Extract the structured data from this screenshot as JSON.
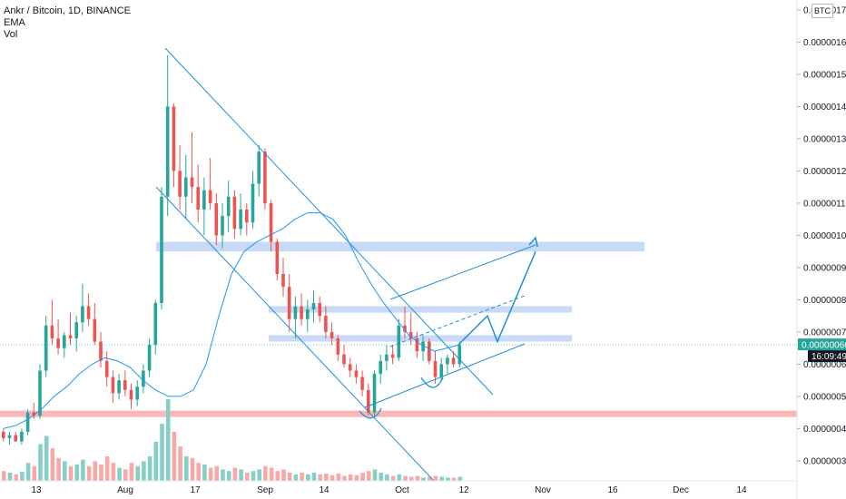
{
  "header": {
    "symbol_line": "Ankr / Bitcoin, 1D, BINANCE",
    "indicator_ema": "EMA",
    "indicator_vol": "Vol"
  },
  "price_scale": {
    "unit": "BTC",
    "labels": [
      "0.00000170",
      "0.00000160",
      "0.00000150",
      "0.00000140",
      "0.00000130",
      "0.00000120",
      "0.00000110",
      "0.00000100",
      "0.00000090",
      "0.00000080",
      "0.00000070",
      "0.00000060",
      "0.00000050",
      "0.00000040",
      "0.00000030"
    ],
    "last_price": "0.00000066",
    "countdown": "16:09:49"
  },
  "colors": {
    "up": "#26a69a",
    "down": "#ef5350",
    "vol_up": "#86cfc6",
    "vol_down": "#f6a9a6",
    "ema": "#2196f3",
    "drawing": "#1e8fd6",
    "zone_blue": "#c5d8f5",
    "zone_red": "#f9b3b3",
    "last_price_badge": "#26a69a",
    "countdown_badge": "#131722"
  },
  "chart_data": {
    "type": "candlestick",
    "title": "Ankr / Bitcoin, 1D, BINANCE",
    "xlabel": "",
    "ylabel": "",
    "x_tick_labels": [
      "13",
      "Aug",
      "17",
      "Sep",
      "14",
      "Oct",
      "12",
      "Nov",
      "16",
      "Dec",
      "14"
    ],
    "y_tick_labels": [
      "0.00000170",
      "0.00000160",
      "0.00000150",
      "0.00000140",
      "0.00000130",
      "0.00000120",
      "0.00000110",
      "0.00000100",
      "0.00000090",
      "0.00000080",
      "0.00000070",
      "0.00000060",
      "0.00000050",
      "0.00000040",
      "0.00000030"
    ],
    "ylim": [
      2e-07,
      1.72e-06
    ],
    "grid": false,
    "series": [
      {
        "name": "EMA",
        "values": [
          4e-07,
          4.1e-07,
          4.3e-07,
          4.6e-07,
          5e-07,
          5.3e-07,
          5.7e-07,
          6e-07,
          6.2e-07,
          6.1e-07,
          5.9e-07,
          5.5e-07,
          5.2e-07,
          5e-07,
          5e-07,
          5.2e-07,
          6e-07,
          7.5e-07,
          8.8e-07,
          9.5e-07,
          9.8e-07,
          1e-06,
          1.02e-06,
          1.05e-06,
          1.07e-06,
          1.07e-06,
          1.05e-06,
          1e-06,
          9.2e-07,
          8.5e-07,
          7.9e-07,
          7.4e-07,
          6.9e-07,
          6.6e-07,
          6.4e-07,
          6.5e-07,
          6.6e-07
        ]
      }
    ],
    "candles_ohlc": [
      [
        3.9e-07,
        4e-07,
        3.6e-07,
        3.7e-07
      ],
      [
        3.7e-07,
        3.9e-07,
        3.5e-07,
        3.8e-07
      ],
      [
        3.8e-07,
        3.9e-07,
        3.6e-07,
        3.6e-07
      ],
      [
        3.6e-07,
        4e-07,
        3.5e-07,
        3.9e-07
      ],
      [
        3.9e-07,
        4.6e-07,
        3.8e-07,
        4.5e-07
      ],
      [
        4.5e-07,
        4.8e-07,
        4.3e-07,
        4.4e-07
      ],
      [
        4.4e-07,
        6e-07,
        4.3e-07,
        5.8e-07
      ],
      [
        5.8e-07,
        7.5e-07,
        5.6e-07,
        7.2e-07
      ],
      [
        7.2e-07,
        8e-07,
        6.6e-07,
        6.8e-07
      ],
      [
        6.8e-07,
        7.4e-07,
        6.3e-07,
        6.5e-07
      ],
      [
        6.5e-07,
        7e-07,
        6.2e-07,
        6.9e-07
      ],
      [
        6.9e-07,
        7.6e-07,
        6.6e-07,
        6.8e-07
      ],
      [
        6.8e-07,
        7.5e-07,
        6.4e-07,
        7.3e-07
      ],
      [
        7.3e-07,
        8.5e-07,
        7e-07,
        7.8e-07
      ],
      [
        7.8e-07,
        8.2e-07,
        7.2e-07,
        7.4e-07
      ],
      [
        7.4e-07,
        7.9e-07,
        6.6e-07,
        6.7e-07
      ],
      [
        6.7e-07,
        7e-07,
        5.9e-07,
        6.1e-07
      ],
      [
        6.1e-07,
        6.4e-07,
        5.3e-07,
        5.6e-07
      ],
      [
        5.6e-07,
        5.8e-07,
        4.8e-07,
        5.1e-07
      ],
      [
        5.1e-07,
        5.7e-07,
        4.9e-07,
        5.5e-07
      ],
      [
        5.5e-07,
        5.8e-07,
        5e-07,
        5.2e-07
      ],
      [
        5.2e-07,
        5.4e-07,
        4.6e-07,
        4.9e-07
      ],
      [
        4.9e-07,
        5.5e-07,
        4.7e-07,
        5.3e-07
      ],
      [
        5.3e-07,
        6e-07,
        5.1e-07,
        5.8e-07
      ],
      [
        5.8e-07,
        6.8e-07,
        5.6e-07,
        6.6e-07
      ],
      [
        6.6e-07,
        8e-07,
        6.3e-07,
        7.9e-07
      ],
      [
        7.9e-07,
        1.15e-06,
        7.7e-07,
        1.12e-06
      ],
      [
        1.12e-06,
        1.56e-06,
        1.06e-06,
        1.4e-06
      ],
      [
        1.4e-06,
        1.41e-06,
        1.15e-06,
        1.2e-06
      ],
      [
        1.2e-06,
        1.28e-06,
        1.08e-06,
        1.12e-06
      ],
      [
        1.12e-06,
        1.25e-06,
        1.05e-06,
        1.18e-06
      ],
      [
        1.18e-06,
        1.32e-06,
        1.1e-06,
        1.15e-06
      ],
      [
        1.15e-06,
        1.22e-06,
        1.04e-06,
        1.08e-06
      ],
      [
        1.08e-06,
        1.18e-06,
        1e-06,
        1.14e-06
      ],
      [
        1.14e-06,
        1.24e-06,
        1.08e-06,
        1.1e-06
      ],
      [
        1.1e-06,
        1.13e-06,
        9.7e-07,
        1e-06
      ],
      [
        1e-06,
        1.1e-06,
        9.6e-07,
        1.06e-06
      ],
      [
        1.06e-06,
        1.17e-06,
        1.01e-06,
        1.12e-06
      ],
      [
        1.12e-06,
        1.14e-06,
        9.9e-07,
        1.02e-06
      ],
      [
        1.02e-06,
        1.13e-06,
        1e-06,
        1.08e-06
      ],
      [
        1.08e-06,
        1.1e-06,
        1e-06,
        1.04e-06
      ],
      [
        1.04e-06,
        1.2e-06,
        1.02e-06,
        1.16e-06
      ],
      [
        1.16e-06,
        1.28e-06,
        1.12e-06,
        1.26e-06
      ],
      [
        1.26e-06,
        1.27e-06,
        1.08e-06,
        1.1e-06
      ],
      [
        1.1e-06,
        1.11e-06,
        9.5e-07,
        9.8e-07
      ],
      [
        9.8e-07,
        9.9e-07,
        8.6e-07,
        8.8e-07
      ],
      [
        8.8e-07,
        9.3e-07,
        8.1e-07,
        8.4e-07
      ],
      [
        8.4e-07,
        8.8e-07,
        7e-07,
        7.4e-07
      ],
      [
        7.4e-07,
        8.1e-07,
        6.8e-07,
        7.8e-07
      ],
      [
        7.8e-07,
        8.2e-07,
        7.2e-07,
        7.4e-07
      ],
      [
        7.4e-07,
        8e-07,
        7e-07,
        7.7e-07
      ],
      [
        7.7e-07,
        8.3e-07,
        7.3e-07,
        7.9e-07
      ],
      [
        7.9e-07,
        8.1e-07,
        7.3e-07,
        7.5e-07
      ],
      [
        7.5e-07,
        7.8e-07,
        6.8e-07,
        7e-07
      ],
      [
        7e-07,
        7.3e-07,
        6.6e-07,
        6.8e-07
      ],
      [
        6.8e-07,
        6.9e-07,
        6.1e-07,
        6.3e-07
      ],
      [
        6.3e-07,
        6.6e-07,
        5.9e-07,
        6e-07
      ],
      [
        6e-07,
        6.2e-07,
        5.6e-07,
        5.8e-07
      ],
      [
        5.8e-07,
        6e-07,
        5.4e-07,
        5.6e-07
      ],
      [
        5.6e-07,
        5.8e-07,
        5e-07,
        5.2e-07
      ],
      [
        5.2e-07,
        5.4e-07,
        4.4e-07,
        4.5e-07
      ],
      [
        4.5e-07,
        5.8e-07,
        4.4e-07,
        5.7e-07
      ],
      [
        5.7e-07,
        6.3e-07,
        5.4e-07,
        6.1e-07
      ],
      [
        6.1e-07,
        6.6e-07,
        5.8e-07,
        6.3e-07
      ],
      [
        6.3e-07,
        6.6e-07,
        6e-07,
        6.2e-07
      ],
      [
        6.2e-07,
        7.4e-07,
        6.1e-07,
        7.2e-07
      ],
      [
        7.2e-07,
        7.8e-07,
        6.8e-07,
        7e-07
      ],
      [
        7e-07,
        7.6e-07,
        6.6e-07,
        6.8e-07
      ],
      [
        6.8e-07,
        7e-07,
        6.2e-07,
        6.4e-07
      ],
      [
        6.4e-07,
        6.9e-07,
        6.1e-07,
        6.7e-07
      ],
      [
        6.7e-07,
        6.8e-07,
        6e-07,
        6.1e-07
      ],
      [
        6.1e-07,
        6.4e-07,
        5.4e-07,
        5.6e-07
      ],
      [
        5.6e-07,
        6.2e-07,
        5.5e-07,
        6e-07
      ],
      [
        6e-07,
        6.3e-07,
        5.7e-07,
        6.2e-07
      ],
      [
        6.2e-07,
        6.4e-07,
        5.9e-07,
        6e-07
      ],
      [
        6e-07,
        6.7e-07,
        5.9e-07,
        6.6e-07
      ]
    ],
    "volumes": [
      [
        0.12,
        "down"
      ],
      [
        0.1,
        "up"
      ],
      [
        0.08,
        "down"
      ],
      [
        0.11,
        "up"
      ],
      [
        0.22,
        "up"
      ],
      [
        0.18,
        "down"
      ],
      [
        0.45,
        "up"
      ],
      [
        0.55,
        "up"
      ],
      [
        0.4,
        "down"
      ],
      [
        0.28,
        "down"
      ],
      [
        0.24,
        "up"
      ],
      [
        0.18,
        "down"
      ],
      [
        0.2,
        "up"
      ],
      [
        0.26,
        "up"
      ],
      [
        0.18,
        "down"
      ],
      [
        0.24,
        "down"
      ],
      [
        0.2,
        "down"
      ],
      [
        0.3,
        "down"
      ],
      [
        0.22,
        "down"
      ],
      [
        0.16,
        "up"
      ],
      [
        0.14,
        "down"
      ],
      [
        0.22,
        "down"
      ],
      [
        0.18,
        "up"
      ],
      [
        0.24,
        "up"
      ],
      [
        0.3,
        "up"
      ],
      [
        0.48,
        "up"
      ],
      [
        0.7,
        "up"
      ],
      [
        1.0,
        "up"
      ],
      [
        0.6,
        "down"
      ],
      [
        0.42,
        "down"
      ],
      [
        0.3,
        "up"
      ],
      [
        0.28,
        "down"
      ],
      [
        0.22,
        "down"
      ],
      [
        0.2,
        "up"
      ],
      [
        0.16,
        "down"
      ],
      [
        0.18,
        "down"
      ],
      [
        0.14,
        "up"
      ],
      [
        0.12,
        "up"
      ],
      [
        0.16,
        "down"
      ],
      [
        0.14,
        "up"
      ],
      [
        0.1,
        "down"
      ],
      [
        0.12,
        "up"
      ],
      [
        0.14,
        "up"
      ],
      [
        0.18,
        "down"
      ],
      [
        0.16,
        "down"
      ],
      [
        0.12,
        "down"
      ],
      [
        0.14,
        "down"
      ],
      [
        0.1,
        "down"
      ],
      [
        0.08,
        "up"
      ],
      [
        0.1,
        "down"
      ],
      [
        0.08,
        "up"
      ],
      [
        0.1,
        "up"
      ],
      [
        0.08,
        "down"
      ],
      [
        0.09,
        "down"
      ],
      [
        0.07,
        "down"
      ],
      [
        0.09,
        "down"
      ],
      [
        0.06,
        "down"
      ],
      [
        0.08,
        "down"
      ],
      [
        0.07,
        "down"
      ],
      [
        0.1,
        "down"
      ],
      [
        0.12,
        "down"
      ],
      [
        0.14,
        "up"
      ],
      [
        0.1,
        "up"
      ],
      [
        0.08,
        "up"
      ],
      [
        0.06,
        "down"
      ],
      [
        0.08,
        "up"
      ],
      [
        0.06,
        "down"
      ],
      [
        0.05,
        "down"
      ],
      [
        0.06,
        "down"
      ],
      [
        0.04,
        "up"
      ],
      [
        0.05,
        "down"
      ],
      [
        0.06,
        "down"
      ],
      [
        0.05,
        "up"
      ],
      [
        0.04,
        "up"
      ],
      [
        0.04,
        "down"
      ],
      [
        0.05,
        "up"
      ]
    ],
    "annotations": {
      "resistance_zones": [
        {
          "low": 9.5e-07,
          "high": 9.8e-07
        },
        {
          "low": 7.6e-07,
          "high": 7.8e-07
        },
        {
          "low": 6.7e-07,
          "high": 6.9e-07
        }
      ],
      "support_zone": {
        "low": 4.4e-07,
        "high": 4.5e-07
      },
      "projection_path_prices": [
        6.6e-07,
        7.5e-07,
        6.7e-07,
        9.5e-07
      ]
    }
  }
}
